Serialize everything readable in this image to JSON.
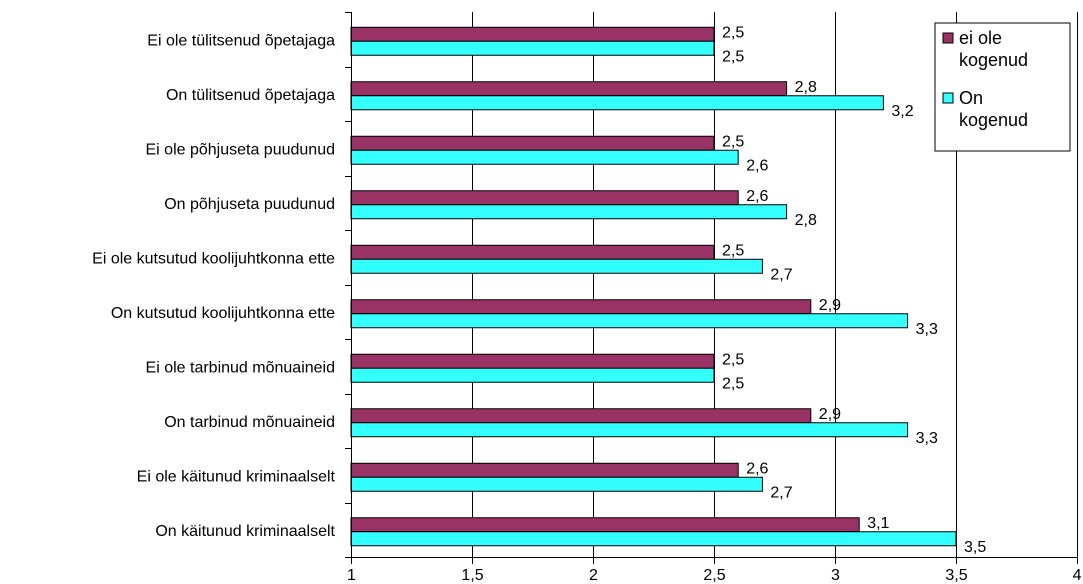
{
  "chart_data": {
    "type": "bar",
    "orientation": "horizontal",
    "categories": [
      "Ei ole tülitsenud õpetajaga",
      "On tülitsenud õpetajaga",
      "Ei ole põhjuseta puudunud",
      "On põhjuseta puudunud",
      "Ei ole kutsutud koolijuhtkonna ette",
      "On kutsutud koolijuhtkonna ette",
      "Ei ole tarbinud mõnuaineid",
      "On tarbinud mõnuaineid",
      "Ei ole käitunud kriminaalselt",
      "On käitunud kriminaalselt"
    ],
    "series": [
      {
        "name": "ei ole kogenud",
        "color": "#993366",
        "values": [
          2.5,
          2.8,
          2.5,
          2.6,
          2.5,
          2.9,
          2.5,
          2.9,
          2.6,
          3.1
        ],
        "labels": [
          "2,5",
          "2,8",
          "2,5",
          "2,6",
          "2,5",
          "2,9",
          "2,5",
          "2,9",
          "2,6",
          "3,1"
        ]
      },
      {
        "name": "On kogenud",
        "color": "#33FFFF",
        "values": [
          2.5,
          3.2,
          2.6,
          2.8,
          2.7,
          3.3,
          2.5,
          3.3,
          2.7,
          3.5
        ],
        "labels": [
          "2,5",
          "3,2",
          "2,6",
          "2,8",
          "2,7",
          "3,3",
          "2,5",
          "3,3",
          "2,7",
          "3,5"
        ]
      }
    ],
    "xlim": [
      1,
      4
    ],
    "xticks": [
      1,
      1.5,
      2,
      2.5,
      3,
      3.5,
      4
    ],
    "xtick_labels": [
      "1",
      "1,5",
      "2",
      "2,5",
      "3",
      "3,5",
      "4"
    ],
    "grid": "vertical major gridlines",
    "legend": {
      "placement": "top-right",
      "entries": [
        {
          "line1": "ei ole",
          "line2": "kogenud"
        },
        {
          "line1": "On",
          "line2": "kogenud"
        }
      ]
    }
  }
}
